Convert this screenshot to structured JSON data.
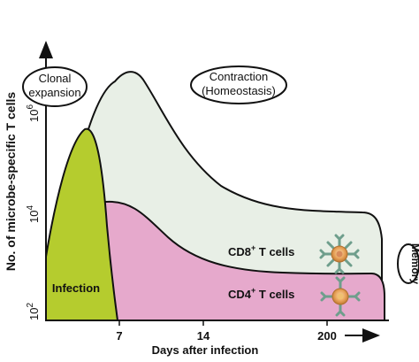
{
  "diagram": {
    "y_axis_label": "No. of microbe-specific T cells",
    "x_axis_label": "Days after infection",
    "y_ticks": [
      {
        "base": "10",
        "exp": "2"
      },
      {
        "base": "10",
        "exp": "4"
      },
      {
        "base": "10",
        "exp": "6"
      }
    ],
    "x_ticks": [
      "7",
      "14",
      "200"
    ],
    "phases": {
      "clonal_expansion": [
        "Clonal",
        "expansion"
      ],
      "contraction": [
        "Contraction",
        "(Homeostasis)"
      ],
      "memory": "Memory"
    },
    "regions": {
      "infection": "Infection",
      "cd8": {
        "prefix": "CD8",
        "sup": "+",
        "suffix": " T cells"
      },
      "cd4": {
        "prefix": "CD4",
        "sup": "+",
        "suffix": " T cells"
      }
    },
    "colors": {
      "infection": "#b5cc2e",
      "cd8": "#e8efe6",
      "cd4": "#e6a9cc",
      "cell_body": "#e8a35a",
      "receptor": "#6e9e8c"
    },
    "icons": [
      "cd8-cell-icon",
      "cd4-cell-icon"
    ]
  }
}
